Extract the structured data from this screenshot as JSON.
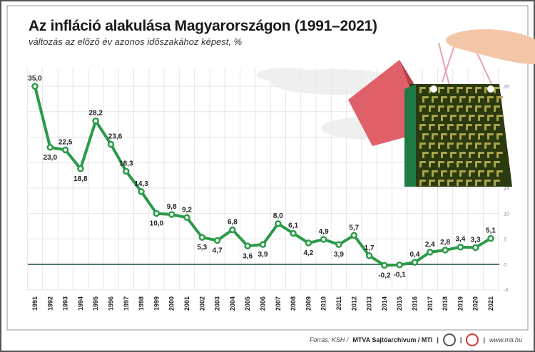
{
  "header": {
    "title": "Az infláció alakulása Magyarországon (1991–2021)",
    "subtitle": "változás az előző év azonos időszakához képest, %"
  },
  "footer": {
    "source_prefix": "Forrás: KSH /",
    "source_bold": "MTVA Sajtóarchívum / MTI",
    "separator": "|",
    "website": "www.mti.hu"
  },
  "colors": {
    "line": "#2a9a48",
    "zero_line": "#4e7a66",
    "grid": "#e6e6e6"
  },
  "chart_data": {
    "type": "line",
    "title": "Az infláció alakulása Magyarországon (1991–2021)",
    "ylabel": "%",
    "x": [
      "1991",
      "1992",
      "1993",
      "1994",
      "1995",
      "1996",
      "1997",
      "1998",
      "1999",
      "2000",
      "2001",
      "2002",
      "2003",
      "2004",
      "2005",
      "2006",
      "2007",
      "2008",
      "2009",
      "2010",
      "2011",
      "2012",
      "2013",
      "2014",
      "2015",
      "2016",
      "2017",
      "2018",
      "2019",
      "2020",
      "2021"
    ],
    "values": [
      35.0,
      23.0,
      22.5,
      18.8,
      28.2,
      23.6,
      18.3,
      14.3,
      10.0,
      9.8,
      9.2,
      5.3,
      4.7,
      6.8,
      3.6,
      3.9,
      8.0,
      6.1,
      4.2,
      4.9,
      3.9,
      5.7,
      1.7,
      -0.2,
      -0.1,
      0.4,
      2.4,
      2.8,
      3.4,
      3.3,
      5.1
    ],
    "labels": [
      "35,0",
      "23,0",
      "22,5",
      "18,8",
      "28,2",
      "23,6",
      "18,3",
      "14,3",
      "10,0",
      "9,8",
      "9,2",
      "5,3",
      "4,7",
      "6,8",
      "3,6",
      "3,9",
      "8,0",
      "6,1",
      "4,2",
      "4,9",
      "3,9",
      "5,7",
      "1,7",
      "-0,2",
      "-0,1",
      "0,4",
      "2,4",
      "2,8",
      "3,4",
      "3,3",
      "5,1"
    ],
    "ylim": [
      -5,
      35
    ],
    "yticks": [
      "35",
      "15",
      "10",
      "5",
      "0",
      "-5"
    ],
    "ytick_values": [
      35,
      15,
      10,
      5,
      0,
      -5
    ],
    "grid": true
  }
}
